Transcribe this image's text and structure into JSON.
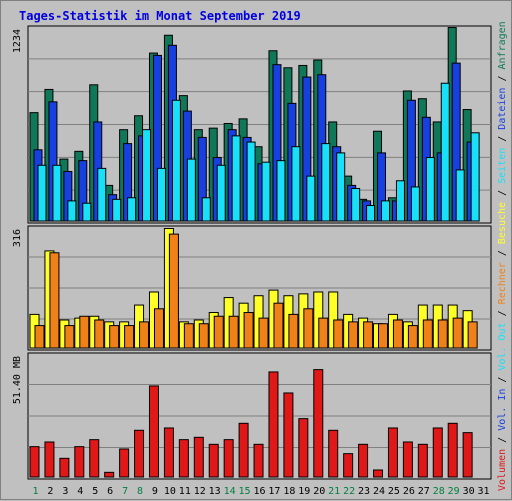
{
  "chart_data": {
    "type": "bar",
    "title": "Tages-Statistik im Monat September 2019",
    "colors": {
      "anfragen": "#107858",
      "dateien": "#1840e0",
      "seiten": "#18e0f8",
      "besuche": "#ffff28",
      "rechner": "#f08018",
      "volumen": "#e01818",
      "weekday_tick": "#000000",
      "weekend_tick": "#008040",
      "background": "#c0c0c0",
      "grid": "#808080"
    },
    "days": [
      "1",
      "2",
      "3",
      "4",
      "5",
      "6",
      "7",
      "8",
      "9",
      "10",
      "11",
      "12",
      "13",
      "14",
      "15",
      "16",
      "17",
      "18",
      "19",
      "20",
      "21",
      "22",
      "23",
      "24",
      "25",
      "26",
      "27",
      "28",
      "29",
      "30",
      "31"
    ],
    "weekend_days": [
      1,
      7,
      8,
      14,
      15,
      21,
      22,
      28,
      29
    ],
    "panels": [
      {
        "id": "top",
        "max_label": "1234",
        "max_value": 1234,
        "series": [
          {
            "key": "anfragen",
            "values": [
              700,
              850,
              400,
              450,
              880,
              230,
              590,
              680,
              1085,
              1200,
              810,
              590,
              600,
              630,
              660,
              480,
              1100,
              990,
              1005,
              1040,
              640,
              290,
              140,
              580,
              150,
              840,
              790,
              640,
              1250,
              720,
              0
            ]
          },
          {
            "key": "dateien",
            "values": [
              460,
              770,
              320,
              390,
              640,
              170,
              500,
              550,
              1070,
              1135,
              710,
              540,
              410,
              590,
              540,
              370,
              1010,
              760,
              930,
              945,
              480,
              230,
              130,
              440,
              130,
              780,
              670,
              440,
              1020,
              510,
              0
            ]
          },
          {
            "key": "seiten",
            "values": [
              360,
              360,
              130,
              115,
              340,
              140,
              150,
              590,
              340,
              780,
              400,
              150,
              360,
              550,
              510,
              380,
              390,
              480,
              290,
              500,
              440,
              210,
              100,
              130,
              260,
              220,
              410,
              890,
              330,
              570,
              0
            ]
          }
        ]
      },
      {
        "id": "middle",
        "max_label": "316",
        "max_value": 316,
        "series": [
          {
            "key": "besuche",
            "values": [
              90,
              260,
              75,
              80,
              85,
              70,
              70,
              115,
              150,
              320,
              70,
              75,
              95,
              135,
              120,
              140,
              155,
              140,
              145,
              150,
              150,
              90,
              80,
              65,
              90,
              70,
              115,
              115,
              115,
              100,
              0
            ]
          },
          {
            "key": "rechner",
            "values": [
              60,
              255,
              60,
              85,
              75,
              60,
              60,
              70,
              105,
              305,
              65,
              65,
              85,
              85,
              95,
              80,
              120,
              90,
              105,
              80,
              75,
              70,
              70,
              65,
              75,
              60,
              75,
              75,
              80,
              70,
              0
            ]
          }
        ]
      },
      {
        "id": "bottom",
        "max_label": "51.40 MB",
        "max_value": 51.4,
        "series": [
          {
            "key": "volumen",
            "values": [
              13,
              15,
              8,
              13,
              16,
              2,
              12,
              20,
              39,
              21,
              16,
              17,
              14,
              16,
              23,
              14,
              45,
              36,
              25,
              46,
              20,
              10,
              14,
              3,
              21,
              15,
              14,
              21,
              23,
              19,
              0
            ]
          }
        ]
      }
    ],
    "legend_right": [
      {
        "text": "Volumen",
        "key": "volumen"
      },
      {
        "text": " / ",
        "key": "sep"
      },
      {
        "text": "Vol. In",
        "key": "dateien"
      },
      {
        "text": " / ",
        "key": "sep"
      },
      {
        "text": "Vol. Out",
        "key": "seiten"
      },
      {
        "text": " / ",
        "key": "sep"
      },
      {
        "text": "Rechner",
        "key": "rechner"
      },
      {
        "text": " / ",
        "key": "sep"
      },
      {
        "text": "Besuche",
        "key": "besuche"
      },
      {
        "text": " / ",
        "key": "sep"
      },
      {
        "text": "Seiten",
        "key": "seiten"
      },
      {
        "text": " / ",
        "key": "sep"
      },
      {
        "text": "Dateien",
        "key": "dateien"
      },
      {
        "text": " / ",
        "key": "sep"
      },
      {
        "text": "Anfragen",
        "key": "anfragen"
      }
    ]
  }
}
